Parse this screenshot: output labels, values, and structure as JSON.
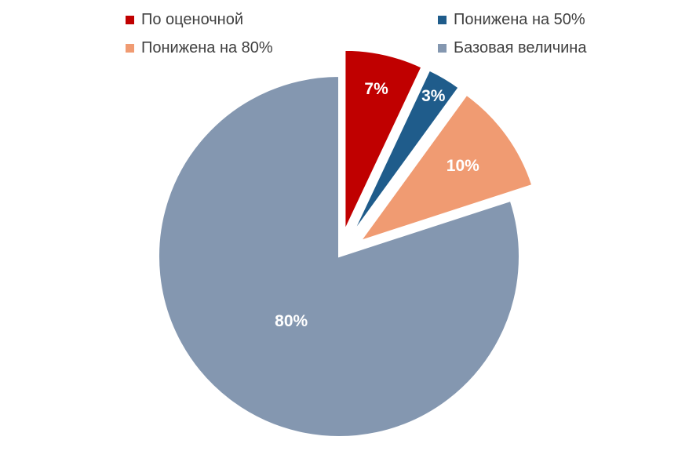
{
  "chart_data": {
    "type": "pie",
    "title": "",
    "legend_position": "top",
    "categories": [
      "По оценочной",
      "Понижена на 50%",
      "Понижена на 80%",
      "Базовая величина"
    ],
    "values": [
      7,
      3,
      10,
      80
    ],
    "data_labels": [
      "7%",
      "3%",
      "10%",
      "80%"
    ],
    "exploded": [
      true,
      true,
      true,
      false
    ],
    "colors": [
      "#C00000",
      "#1F5C8B",
      "#F09B72",
      "#8497B0"
    ]
  }
}
